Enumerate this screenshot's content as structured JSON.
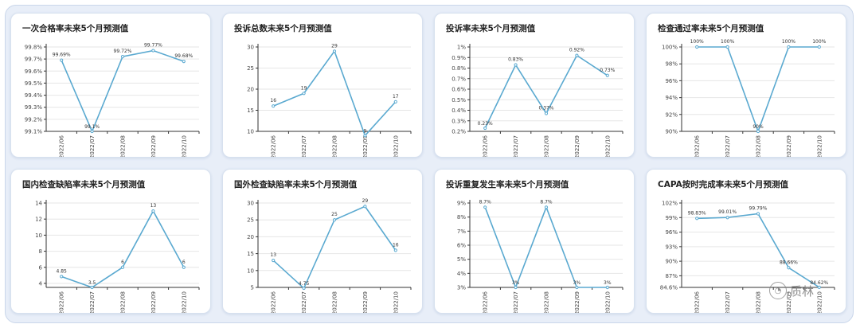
{
  "watermark": {
    "icon": "chat-bubble-icon",
    "text": "质林"
  },
  "colors": {
    "line": "#5aa9d0",
    "axis": "#333333",
    "grid": "#e6e6e6",
    "label": "#333333"
  },
  "chart_data": [
    {
      "type": "line",
      "title": "一次合格率未来5个月预测值",
      "x": [
        "2022/06",
        "2022/07",
        "2022/08",
        "2022/09",
        "2022/10"
      ],
      "values": [
        99.69,
        99.1,
        99.72,
        99.77,
        99.68
      ],
      "labels": [
        "99.69%",
        "99.1%",
        "99.72%",
        "99.77%",
        "99.68%"
      ],
      "yticks": [
        "99.1%",
        "99.2%",
        "99.3%",
        "99.4%",
        "99.5%",
        "99.6%",
        "99.7%",
        "99.8%"
      ],
      "ylim": [
        99.1,
        99.8
      ],
      "grid": true
    },
    {
      "type": "line",
      "title": "投诉总数未来5个月预测值",
      "x": [
        "2022/06",
        "2022/07",
        "2022/08",
        "2022/09",
        "2022/10"
      ],
      "values": [
        16,
        19,
        29,
        9,
        17
      ],
      "labels": [
        "16",
        "19",
        "29",
        "9",
        "17"
      ],
      "yticks": [
        "10",
        "15",
        "20",
        "25",
        "30"
      ],
      "ylim": [
        10,
        30
      ],
      "grid": true
    },
    {
      "type": "line",
      "title": "投诉率未来5个月预测值",
      "x": [
        "2022/06",
        "2022/07",
        "2022/08",
        "2022/09",
        "2022/10"
      ],
      "values": [
        0.23,
        0.83,
        0.37,
        0.92,
        0.73
      ],
      "labels": [
        "0.23%",
        "0.83%",
        "0.37%",
        "0.92%",
        "0.73%"
      ],
      "yticks": [
        "0.2%",
        "0.3%",
        "0.4%",
        "0.5%",
        "0.6%",
        "0.7%",
        "0.8%",
        "0.9%",
        "1%"
      ],
      "ylim": [
        0.2,
        1.0
      ],
      "grid": true
    },
    {
      "type": "line",
      "title": "检查通过率未来5个月预测值",
      "x": [
        "2022/06",
        "2022/07",
        "2022/08",
        "2022/09",
        "2022/10"
      ],
      "values": [
        100,
        100,
        90,
        100,
        100
      ],
      "labels": [
        "100%",
        "100%",
        "90%",
        "100%",
        "100%"
      ],
      "yticks": [
        "90%",
        "92%",
        "94%",
        "96%",
        "98%",
        "100%"
      ],
      "ylim": [
        90,
        100
      ],
      "grid": true
    },
    {
      "type": "line",
      "title": "国内检查缺陷率未来5个月预测值",
      "x": [
        "2022/06",
        "2022/07",
        "2022/08",
        "2022/09",
        "2022/10"
      ],
      "values": [
        4.85,
        3.5,
        6,
        13,
        6
      ],
      "labels": [
        "4.85",
        "3.5",
        "6",
        "13",
        "6"
      ],
      "yticks": [
        "4",
        "6",
        "8",
        "10",
        "12",
        "14"
      ],
      "ylim": [
        3.5,
        14
      ],
      "grid": true
    },
    {
      "type": "line",
      "title": "国外检查缺陷率未来5个月预测值",
      "x": [
        "2022/06",
        "2022/07",
        "2022/08",
        "2022/09",
        "2022/10"
      ],
      "values": [
        13,
        4.75,
        25,
        29,
        16
      ],
      "labels": [
        "13",
        "4.75",
        "25",
        "29",
        "16"
      ],
      "yticks": [
        "5",
        "10",
        "15",
        "20",
        "25",
        "30"
      ],
      "ylim": [
        5,
        30
      ],
      "grid": true
    },
    {
      "type": "line",
      "title": "投诉重复发生率未来5个月预测值",
      "x": [
        "2022/06",
        "2022/07",
        "2022/08",
        "2022/09",
        "2022/10"
      ],
      "values": [
        8.7,
        3,
        8.7,
        3,
        3
      ],
      "labels": [
        "8.7%",
        "3%",
        "8.7%",
        "3%",
        "3%"
      ],
      "yticks": [
        "3%",
        "4%",
        "5%",
        "6%",
        "7%",
        "8%",
        "9%"
      ],
      "ylim": [
        3,
        9
      ],
      "grid": true
    },
    {
      "type": "line",
      "title": "CAPA按时完成率未来5个月预测值",
      "x": [
        "2022/06",
        "2022/07",
        "2022/08",
        "2022/09",
        "2022/10"
      ],
      "values": [
        98.83,
        99.01,
        99.79,
        88.66,
        84.62
      ],
      "labels": [
        "98.83%",
        "99.01%",
        "99.79%",
        "88.66%",
        "84.62%"
      ],
      "yticks": [
        "84.6%",
        "87%",
        "90%",
        "93%",
        "96%",
        "99%",
        "102%"
      ],
      "ytick_values": [
        84.6,
        87,
        90,
        93,
        96,
        99,
        102
      ],
      "ylim": [
        84.6,
        102
      ],
      "grid": true
    }
  ]
}
